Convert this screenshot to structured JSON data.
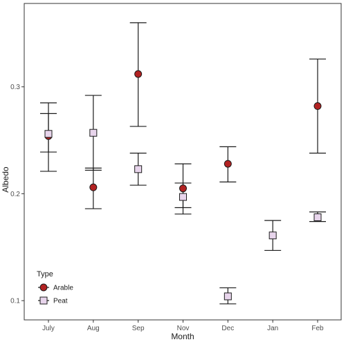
{
  "chart_data": {
    "type": "scatter",
    "title": "",
    "xlabel": "Month",
    "ylabel": "Albedo",
    "categories": [
      "July",
      "Aug",
      "Sep",
      "Nov",
      "Dec",
      "Jan",
      "Feb"
    ],
    "yticks": [
      "0.1",
      "0.2",
      "0.3"
    ],
    "ylim": [
      0.082,
      0.378
    ],
    "grid": false,
    "legend": {
      "title": "Type",
      "position": "bottom-left"
    },
    "series": [
      {
        "name": "Arable",
        "marker": "circle",
        "color": "#b22222",
        "points": [
          {
            "x": "July",
            "y": 0.254,
            "low": 0.239,
            "high": 0.275
          },
          {
            "x": "Aug",
            "y": 0.206,
            "low": 0.186,
            "high": 0.224
          },
          {
            "x": "Sep",
            "y": 0.312,
            "low": 0.263,
            "high": 0.36
          },
          {
            "x": "Nov",
            "y": 0.205,
            "low": 0.187,
            "high": 0.228
          },
          {
            "x": "Dec",
            "y": 0.228,
            "low": 0.211,
            "high": 0.244
          },
          {
            "x": "Feb",
            "y": 0.282,
            "low": 0.238,
            "high": 0.326
          }
        ]
      },
      {
        "name": "Peat",
        "marker": "square",
        "color": "#e8d5ec",
        "points": [
          {
            "x": "July",
            "y": 0.256,
            "low": 0.221,
            "high": 0.285
          },
          {
            "x": "Aug",
            "y": 0.257,
            "low": 0.222,
            "high": 0.292
          },
          {
            "x": "Sep",
            "y": 0.223,
            "low": 0.208,
            "high": 0.238
          },
          {
            "x": "Nov",
            "y": 0.197,
            "low": 0.181,
            "high": 0.21
          },
          {
            "x": "Dec",
            "y": 0.104,
            "low": 0.097,
            "high": 0.112
          },
          {
            "x": "Jan",
            "y": 0.161,
            "low": 0.147,
            "high": 0.175
          },
          {
            "x": "Feb",
            "y": 0.178,
            "low": 0.174,
            "high": 0.183
          }
        ]
      }
    ]
  }
}
